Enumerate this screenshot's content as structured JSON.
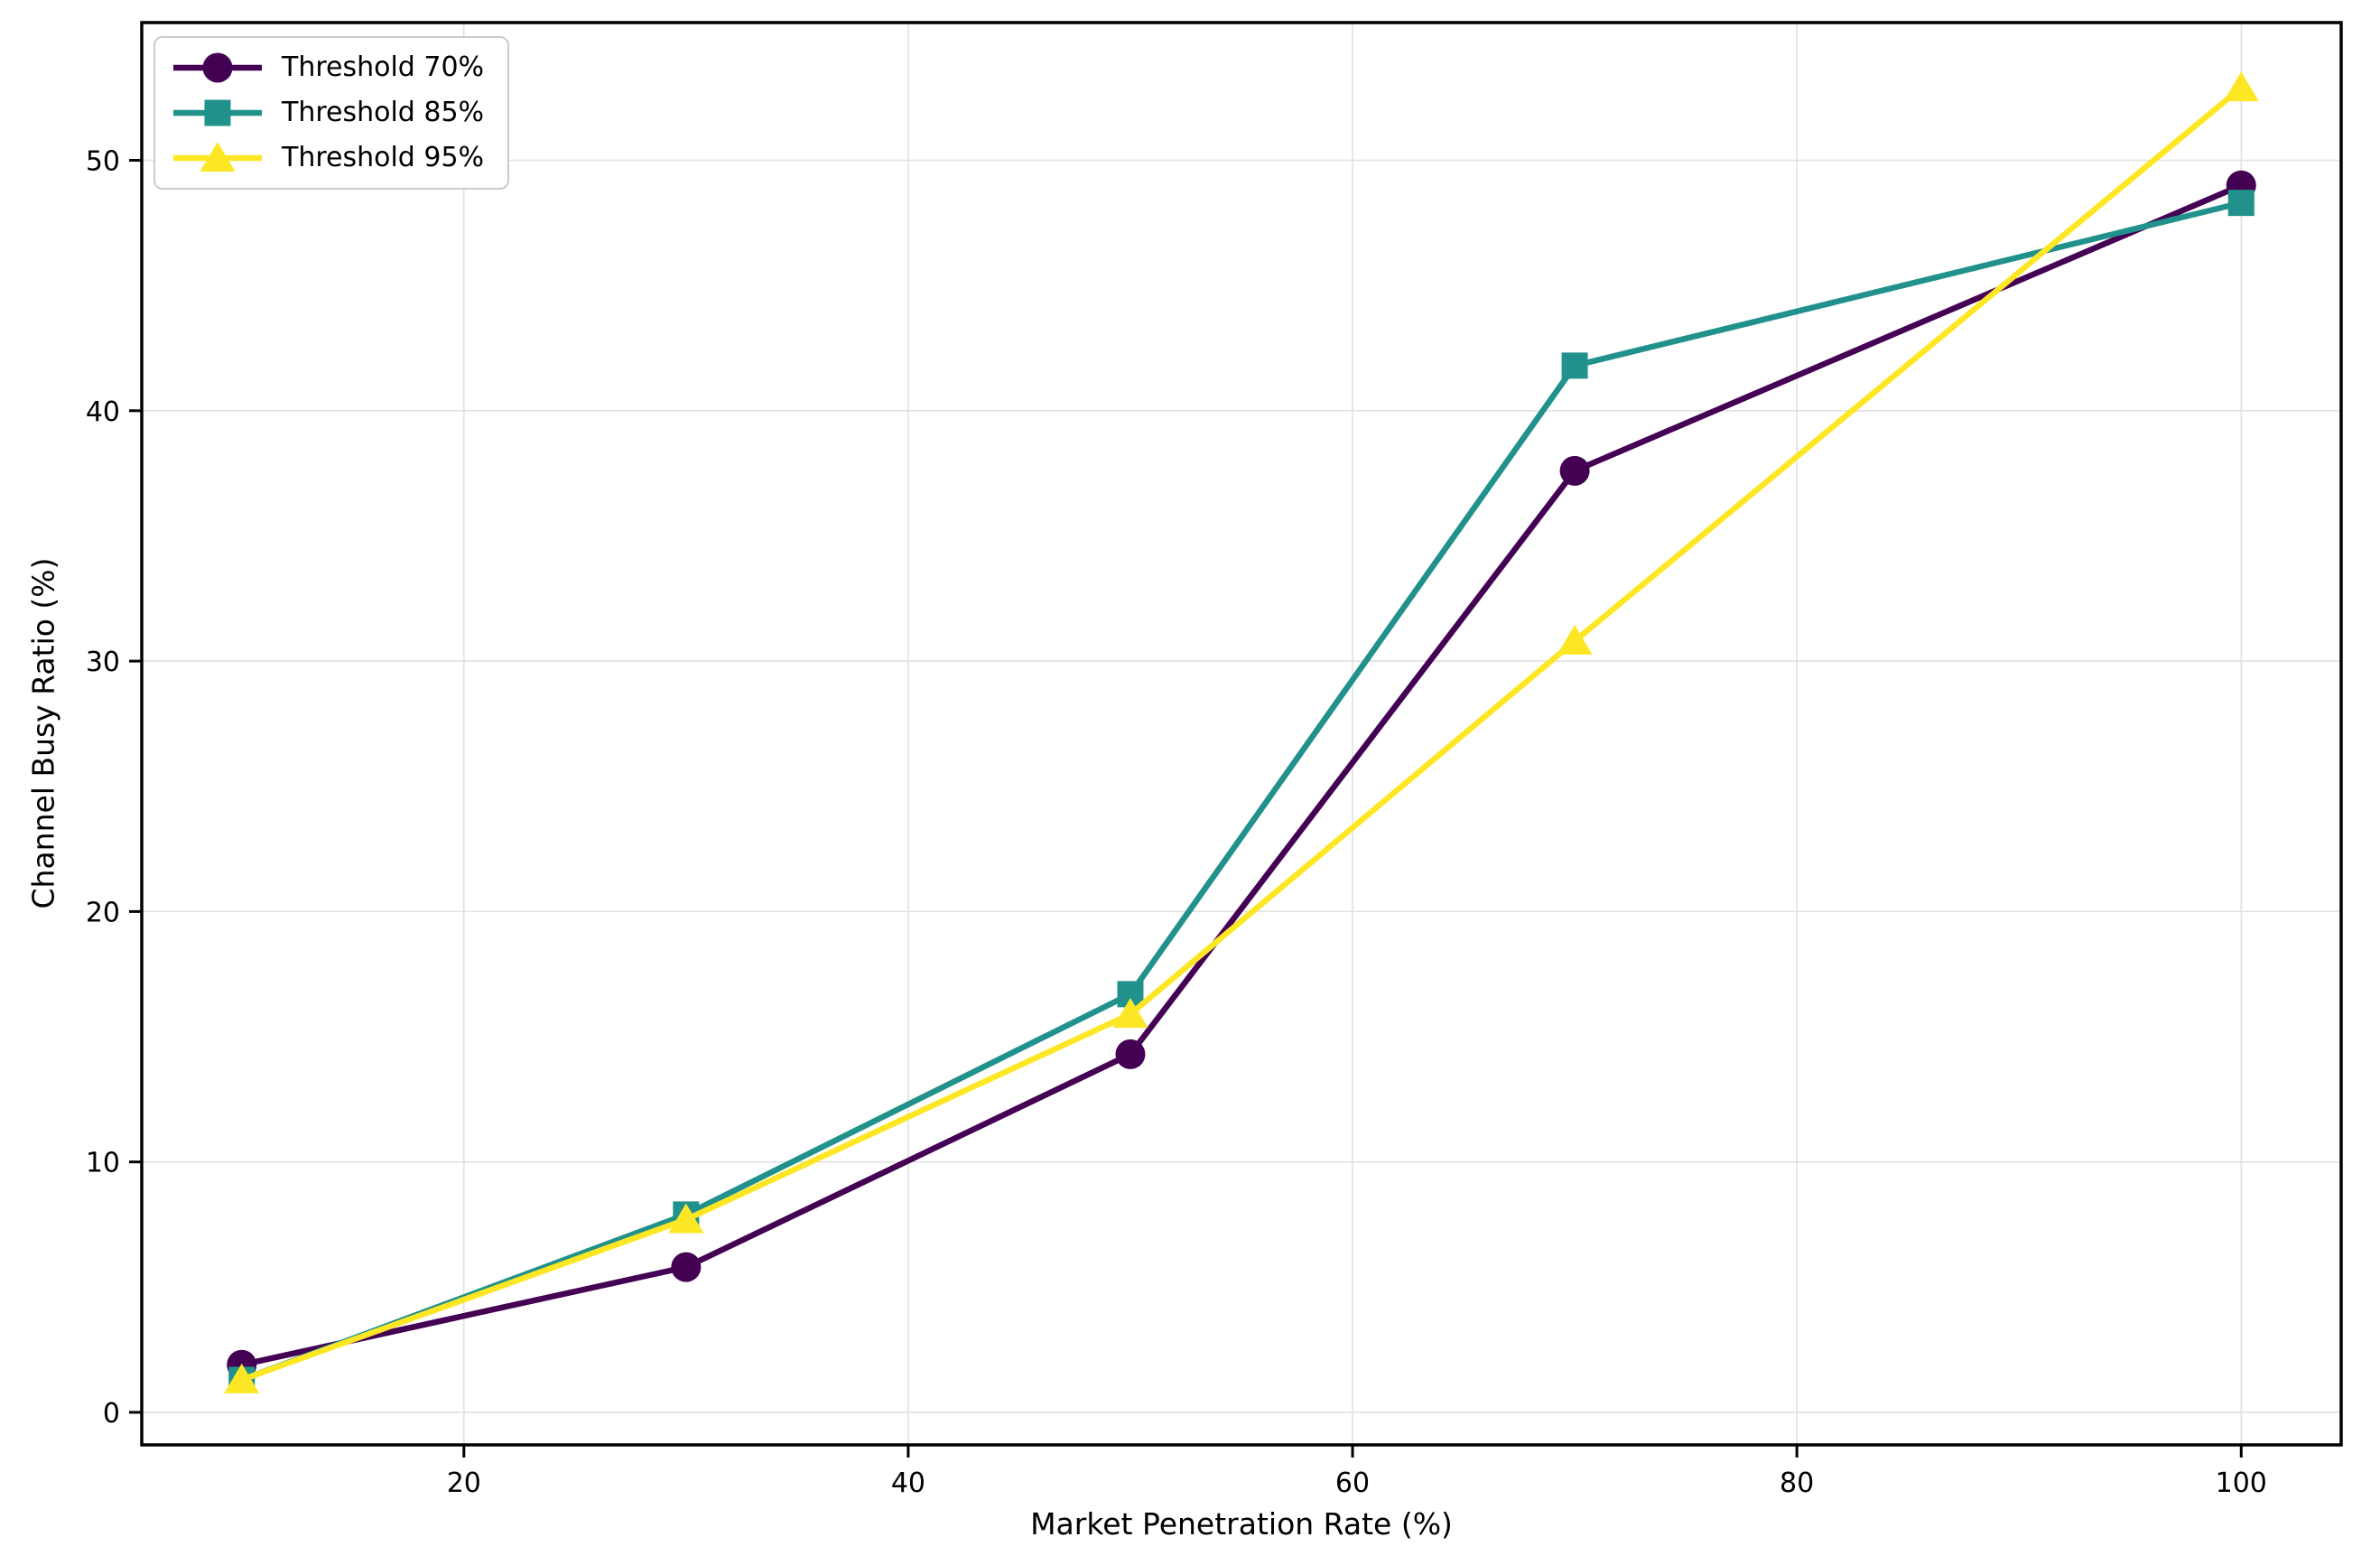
{
  "chart_data": {
    "type": "line",
    "title": "",
    "xlabel": "Market Penetration Rate (%)",
    "ylabel": "Channel Busy Ratio (%)",
    "x": [
      10,
      30,
      50,
      70,
      100
    ],
    "series": [
      {
        "name": "Threshold 70%",
        "marker": "circle",
        "color": "#440154",
        "values": [
          1.9,
          5.8,
          14.3,
          37.6,
          49.0
        ]
      },
      {
        "name": "Threshold 85%",
        "marker": "square",
        "color": "#21918c",
        "values": [
          1.3,
          7.9,
          16.7,
          41.8,
          48.3
        ]
      },
      {
        "name": "Threshold 95%",
        "marker": "triangle",
        "color": "#fde725",
        "values": [
          1.3,
          7.7,
          15.9,
          30.8,
          52.9
        ]
      }
    ],
    "xticks": [
      20,
      40,
      60,
      80,
      100
    ],
    "yticks": [
      0,
      10,
      20,
      30,
      40,
      50
    ],
    "xlim": [
      5.5,
      104.5
    ],
    "ylim": [
      -1.3,
      55.5
    ],
    "grid": true,
    "grid_color": "#e1e1e1",
    "axis_color": "#000000",
    "background_color": "#ffffff",
    "legend_position": "upper left"
  }
}
